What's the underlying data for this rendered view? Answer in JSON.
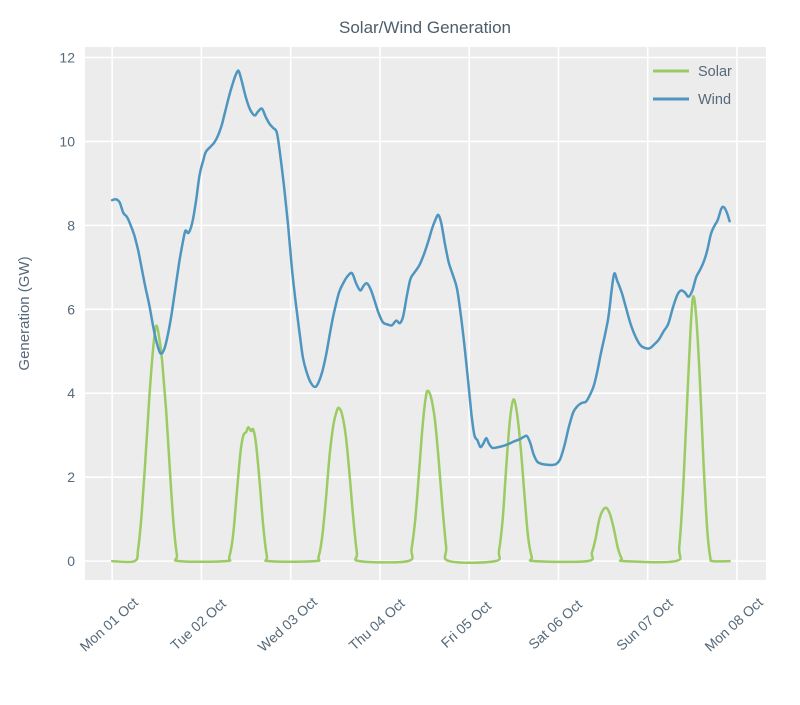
{
  "window": {
    "title": "Solar/Wind Generation"
  },
  "colors": {
    "figure_background": "#ffffff",
    "plot_background": "#ececec",
    "grid": "#ffffff",
    "tick_text": "#56697a",
    "title_text": "#4c5d6b",
    "solar": "#9bcb63",
    "wind": "#4e95bf"
  },
  "chart_data": {
    "type": "line",
    "title": "Solar/Wind Generation",
    "xlabel": "",
    "ylabel": "Generation (GW)",
    "x_unit": "hours since Mon 01 Oct 00:00",
    "xlim_hours": [
      -7.3,
      175.8
    ],
    "ylim": [
      -0.45,
      12.25
    ],
    "y_ticks": [
      0,
      2,
      4,
      6,
      8,
      10,
      12
    ],
    "x_tick_hours": [
      0,
      24,
      48,
      72,
      96,
      120,
      144,
      168
    ],
    "x_tick_labels": [
      "Mon 01 Oct",
      "Tue 02 Oct",
      "Wed 03 Oct",
      "Thu 04 Oct",
      "Fri 05 Oct",
      "Sat 06 Oct",
      "Sun 07 Oct",
      "Mon 08 Oct"
    ],
    "grid": true,
    "legend_position": "upper right",
    "series": [
      {
        "name": "Solar",
        "color": "#9bcb63",
        "points": [
          [
            0,
            0
          ],
          [
            6,
            0
          ],
          [
            7,
            0.3
          ],
          [
            8,
            1.2
          ],
          [
            9,
            2.5
          ],
          [
            10,
            3.9
          ],
          [
            11,
            5.05
          ],
          [
            11.8,
            5.6
          ],
          [
            12.6,
            5.35
          ],
          [
            13.5,
            4.7
          ],
          [
            14.5,
            3.6
          ],
          [
            15.5,
            2.2
          ],
          [
            16.5,
            0.9
          ],
          [
            17.4,
            0.15
          ],
          [
            18,
            0
          ],
          [
            30.5,
            0
          ],
          [
            31.5,
            0.1
          ],
          [
            32.5,
            0.6
          ],
          [
            33.5,
            1.6
          ],
          [
            34.5,
            2.6
          ],
          [
            35.3,
            3.0
          ],
          [
            36,
            3.07
          ],
          [
            36.6,
            3.19
          ],
          [
            37.3,
            3.1
          ],
          [
            37.9,
            3.14
          ],
          [
            38.6,
            2.85
          ],
          [
            39.6,
            1.95
          ],
          [
            40.6,
            0.85
          ],
          [
            41.6,
            0.12
          ],
          [
            42.3,
            0
          ],
          [
            54.5,
            0
          ],
          [
            55.5,
            0.1
          ],
          [
            56.5,
            0.6
          ],
          [
            57.5,
            1.5
          ],
          [
            58.5,
            2.55
          ],
          [
            59.5,
            3.25
          ],
          [
            60.4,
            3.58
          ],
          [
            61,
            3.65
          ],
          [
            61.8,
            3.5
          ],
          [
            62.8,
            3.0
          ],
          [
            63.8,
            2.1
          ],
          [
            64.8,
            1.05
          ],
          [
            65.8,
            0.2
          ],
          [
            66.5,
            0
          ],
          [
            79.5,
            0
          ],
          [
            80.5,
            0.3
          ],
          [
            81.5,
            1.0
          ],
          [
            82.5,
            2.1
          ],
          [
            83.5,
            3.25
          ],
          [
            84.4,
            3.95
          ],
          [
            85,
            4.05
          ],
          [
            85.8,
            3.88
          ],
          [
            86.8,
            3.35
          ],
          [
            87.8,
            2.4
          ],
          [
            88.8,
            1.3
          ],
          [
            89.8,
            0.35
          ],
          [
            90.6,
            0
          ],
          [
            103,
            0
          ],
          [
            104,
            0.25
          ],
          [
            105,
            1.0
          ],
          [
            106,
            2.3
          ],
          [
            107,
            3.4
          ],
          [
            107.9,
            3.85
          ],
          [
            108.8,
            3.55
          ],
          [
            109.8,
            2.75
          ],
          [
            110.8,
            1.65
          ],
          [
            111.8,
            0.6
          ],
          [
            112.8,
            0.1
          ],
          [
            113.6,
            0
          ],
          [
            127.8,
            0
          ],
          [
            129,
            0.2
          ],
          [
            130,
            0.55
          ],
          [
            131,
            1.0
          ],
          [
            132,
            1.22
          ],
          [
            133,
            1.26
          ],
          [
            134,
            1.08
          ],
          [
            135,
            0.72
          ],
          [
            136,
            0.3
          ],
          [
            137,
            0.06
          ],
          [
            137.8,
            0
          ],
          [
            151.5,
            0
          ],
          [
            152.5,
            0.35
          ],
          [
            153.5,
            1.7
          ],
          [
            154.5,
            3.6
          ],
          [
            155.5,
            5.5
          ],
          [
            156.2,
            6.3
          ],
          [
            157,
            5.85
          ],
          [
            158,
            4.35
          ],
          [
            159,
            2.35
          ],
          [
            160,
            0.75
          ],
          [
            160.8,
            0.1
          ],
          [
            161.5,
            0
          ],
          [
            166,
            0
          ]
        ]
      },
      {
        "name": "Wind",
        "color": "#4e95bf",
        "points": [
          [
            0,
            8.6
          ],
          [
            1,
            8.62
          ],
          [
            2,
            8.55
          ],
          [
            3,
            8.3
          ],
          [
            4,
            8.2
          ],
          [
            5,
            8.0
          ],
          [
            6,
            7.75
          ],
          [
            7,
            7.4
          ],
          [
            8,
            6.95
          ],
          [
            9,
            6.5
          ],
          [
            10,
            6.1
          ],
          [
            11,
            5.6
          ],
          [
            12,
            5.2
          ],
          [
            13,
            4.95
          ],
          [
            14,
            5.05
          ],
          [
            15,
            5.4
          ],
          [
            16,
            5.9
          ],
          [
            17,
            6.5
          ],
          [
            18,
            7.1
          ],
          [
            19,
            7.6
          ],
          [
            19.7,
            7.87
          ],
          [
            20.5,
            7.82
          ],
          [
            21.5,
            8.05
          ],
          [
            22.5,
            8.55
          ],
          [
            23.5,
            9.2
          ],
          [
            24.5,
            9.55
          ],
          [
            25.2,
            9.75
          ],
          [
            26.5,
            9.88
          ],
          [
            27.5,
            9.98
          ],
          [
            28.5,
            10.15
          ],
          [
            29.5,
            10.4
          ],
          [
            30.5,
            10.75
          ],
          [
            31.5,
            11.1
          ],
          [
            32.5,
            11.4
          ],
          [
            33.3,
            11.6
          ],
          [
            34,
            11.68
          ],
          [
            34.8,
            11.45
          ],
          [
            35.8,
            11.1
          ],
          [
            36.8,
            10.82
          ],
          [
            37.6,
            10.68
          ],
          [
            38.4,
            10.62
          ],
          [
            39.3,
            10.72
          ],
          [
            40.3,
            10.78
          ],
          [
            41.3,
            10.58
          ],
          [
            42.3,
            10.42
          ],
          [
            43.3,
            10.32
          ],
          [
            44.3,
            10.2
          ],
          [
            45.3,
            9.6
          ],
          [
            46.3,
            8.85
          ],
          [
            47.3,
            8.0
          ],
          [
            48.3,
            7.0
          ],
          [
            49.3,
            6.2
          ],
          [
            50.3,
            5.5
          ],
          [
            51.3,
            4.85
          ],
          [
            52.3,
            4.5
          ],
          [
            53.4,
            4.25
          ],
          [
            54.6,
            4.15
          ],
          [
            55.6,
            4.28
          ],
          [
            56.6,
            4.55
          ],
          [
            57.6,
            4.95
          ],
          [
            58.6,
            5.45
          ],
          [
            59.6,
            5.9
          ],
          [
            61,
            6.4
          ],
          [
            62.3,
            6.65
          ],
          [
            63.4,
            6.8
          ],
          [
            64.5,
            6.86
          ],
          [
            65.6,
            6.62
          ],
          [
            66.7,
            6.45
          ],
          [
            67.6,
            6.56
          ],
          [
            68.5,
            6.62
          ],
          [
            69.5,
            6.48
          ],
          [
            70.5,
            6.22
          ],
          [
            71.6,
            5.92
          ],
          [
            72.8,
            5.69
          ],
          [
            74,
            5.64
          ],
          [
            75.2,
            5.62
          ],
          [
            76.4,
            5.73
          ],
          [
            77.3,
            5.67
          ],
          [
            78.2,
            5.82
          ],
          [
            79.2,
            6.3
          ],
          [
            80.2,
            6.72
          ],
          [
            81.3,
            6.88
          ],
          [
            82.6,
            7.05
          ],
          [
            83.8,
            7.3
          ],
          [
            85,
            7.62
          ],
          [
            86,
            7.92
          ],
          [
            87,
            8.15
          ],
          [
            87.7,
            8.25
          ],
          [
            88.5,
            8.05
          ],
          [
            89.5,
            7.55
          ],
          [
            90.5,
            7.12
          ],
          [
            91.6,
            6.82
          ],
          [
            92.7,
            6.5
          ],
          [
            93.7,
            5.9
          ],
          [
            94.7,
            5.15
          ],
          [
            95.7,
            4.3
          ],
          [
            96.6,
            3.5
          ],
          [
            97.4,
            3.0
          ],
          [
            98.2,
            2.88
          ],
          [
            99,
            2.72
          ],
          [
            99.8,
            2.8
          ],
          [
            100.6,
            2.93
          ],
          [
            101.3,
            2.8
          ],
          [
            102.2,
            2.7
          ],
          [
            103.5,
            2.71
          ],
          [
            105,
            2.74
          ],
          [
            106.5,
            2.79
          ],
          [
            108,
            2.85
          ],
          [
            109.5,
            2.9
          ],
          [
            110.5,
            2.95
          ],
          [
            111.5,
            2.98
          ],
          [
            112.4,
            2.82
          ],
          [
            113.3,
            2.55
          ],
          [
            114.2,
            2.38
          ],
          [
            115.3,
            2.32
          ],
          [
            116.5,
            2.3
          ],
          [
            118,
            2.29
          ],
          [
            119.3,
            2.31
          ],
          [
            120.4,
            2.42
          ],
          [
            121.6,
            2.75
          ],
          [
            122.8,
            3.2
          ],
          [
            124,
            3.55
          ],
          [
            125.2,
            3.7
          ],
          [
            126.3,
            3.77
          ],
          [
            127.4,
            3.8
          ],
          [
            128.4,
            3.95
          ],
          [
            129.4,
            4.15
          ],
          [
            130.4,
            4.5
          ],
          [
            131.4,
            4.95
          ],
          [
            132.4,
            5.35
          ],
          [
            133.4,
            5.8
          ],
          [
            134.3,
            6.45
          ],
          [
            135,
            6.85
          ],
          [
            135.8,
            6.68
          ],
          [
            137,
            6.4
          ],
          [
            138.2,
            6.02
          ],
          [
            139.4,
            5.65
          ],
          [
            140.7,
            5.35
          ],
          [
            142,
            5.15
          ],
          [
            143.2,
            5.08
          ],
          [
            144.5,
            5.07
          ],
          [
            145.6,
            5.15
          ],
          [
            147,
            5.28
          ],
          [
            148.3,
            5.48
          ],
          [
            149.5,
            5.65
          ],
          [
            150.8,
            6.05
          ],
          [
            152,
            6.35
          ],
          [
            153,
            6.45
          ],
          [
            154,
            6.4
          ],
          [
            155,
            6.3
          ],
          [
            156,
            6.45
          ],
          [
            157,
            6.76
          ],
          [
            158,
            6.93
          ],
          [
            159,
            7.12
          ],
          [
            160,
            7.4
          ],
          [
            161,
            7.8
          ],
          [
            162,
            8.0
          ],
          [
            162.8,
            8.12
          ],
          [
            163.8,
            8.4
          ],
          [
            164.5,
            8.43
          ],
          [
            165.3,
            8.3
          ],
          [
            166,
            8.1
          ]
        ]
      }
    ]
  }
}
